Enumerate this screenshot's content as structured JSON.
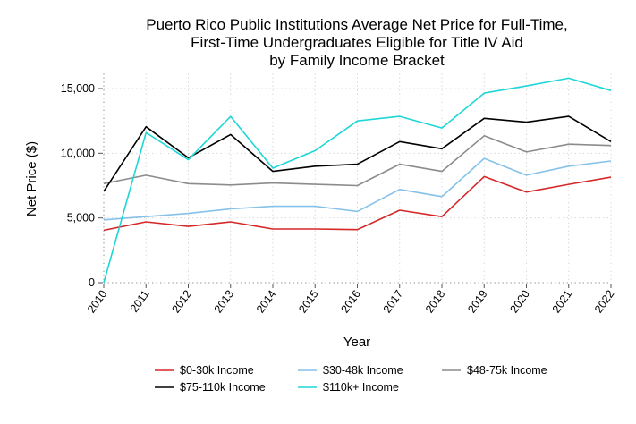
{
  "chart_data": {
    "type": "line",
    "title": [
      "Puerto Rico Public Institutions Average Net Price for Full-Time,",
      "First-Time Undergraduates Eligible for Title IV Aid",
      "by Family Income Bracket"
    ],
    "xlabel": "Year",
    "ylabel": "Net Price ($)",
    "x": [
      "2010",
      "2011",
      "2012",
      "2013",
      "2014",
      "2015",
      "2016",
      "2017",
      "2018",
      "2019",
      "2020",
      "2021",
      "2022"
    ],
    "ylim": [
      0,
      16000
    ],
    "yticks": [
      0,
      5000,
      10000,
      15000
    ],
    "ytick_labels": [
      "0",
      "5,000",
      "10,000",
      "15,000"
    ],
    "grid": true,
    "legend_position": "bottom",
    "series": [
      {
        "name": "$0-30k Income",
        "color": "#d62728",
        "values": [
          4050,
          4700,
          4350,
          4700,
          4150,
          4150,
          4100,
          5600,
          5100,
          8200,
          7000,
          7600,
          8150
        ]
      },
      {
        "name": "$30-48k Income",
        "color": "#85c1e9",
        "values": [
          4850,
          5100,
          5350,
          5700,
          5900,
          5900,
          5500,
          7200,
          6650,
          9600,
          8300,
          9000,
          9400
        ]
      },
      {
        "name": "$48-75k Income",
        "color": "#8c8c8c",
        "values": [
          7650,
          8300,
          7650,
          7550,
          7700,
          7600,
          7500,
          9150,
          8600,
          11350,
          10100,
          10700,
          10600
        ]
      },
      {
        "name": "$75-110k Income",
        "color": "#000000",
        "values": [
          7050,
          12050,
          9650,
          11450,
          8600,
          9000,
          9150,
          10900,
          10350,
          12700,
          12400,
          12850,
          10900
        ]
      },
      {
        "name": "$110k+ Income",
        "color": "#1fd6d6",
        "values": [
          0,
          11600,
          9500,
          12850,
          8850,
          10200,
          12500,
          12850,
          11950,
          14650,
          15200,
          15800,
          14850
        ]
      }
    ]
  }
}
